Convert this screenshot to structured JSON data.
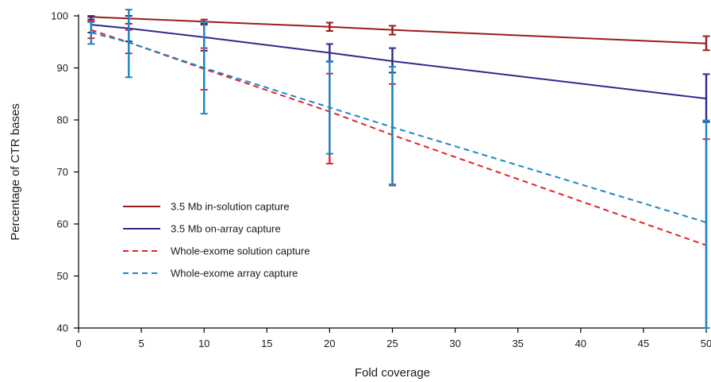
{
  "chart_data": {
    "type": "line",
    "title": "",
    "xlabel": "Fold coverage",
    "ylabel": "Percentage of CTR bases",
    "xlim": [
      0,
      50
    ],
    "ylim": [
      40,
      100
    ],
    "x_ticks": [
      0,
      5,
      10,
      15,
      20,
      25,
      30,
      35,
      40,
      45,
      50
    ],
    "y_ticks": [
      40,
      50,
      60,
      70,
      80,
      90,
      100
    ],
    "grid": false,
    "legend_position": "lower-left",
    "series": [
      {
        "name": "3.5 Mb in-solution capture",
        "color": "#9b1c1c",
        "dash": "solid",
        "points": [
          {
            "x": 1,
            "y": 99.8,
            "err_low": 99.3,
            "err_high": 100.0
          },
          {
            "x": 4,
            "y": 99.5,
            "err_low": 98.5,
            "err_high": 100.0
          },
          {
            "x": 10,
            "y": 98.9,
            "err_low": 98.3,
            "err_high": 99.3
          },
          {
            "x": 20,
            "y": 97.9,
            "err_low": 97.1,
            "err_high": 98.7
          },
          {
            "x": 25,
            "y": 97.3,
            "err_low": 96.4,
            "err_high": 98.1
          },
          {
            "x": 50,
            "y": 94.7,
            "err_low": 93.4,
            "err_high": 96.1
          }
        ]
      },
      {
        "name": "3.5 Mb on-array capture",
        "color": "#2e2b8c",
        "dash": "solid",
        "points": [
          {
            "x": 1,
            "y": 98.3,
            "err_low": 96.8,
            "err_high": 99.8
          },
          {
            "x": 4,
            "y": 97.6,
            "err_low": 95.1,
            "err_high": 100.0
          },
          {
            "x": 10,
            "y": 95.9,
            "err_low": 93.3,
            "err_high": 98.5
          },
          {
            "x": 20,
            "y": 92.9,
            "err_low": 91.2,
            "err_high": 94.6
          },
          {
            "x": 25,
            "y": 91.3,
            "err_low": 89.1,
            "err_high": 93.8
          },
          {
            "x": 50,
            "y": 84.1,
            "err_low": 79.6,
            "err_high": 88.8
          }
        ]
      },
      {
        "name": "Whole-exome solution capture",
        "color": "#e0242b",
        "dash": "dashed",
        "points": [
          {
            "x": 1,
            "y": 97.3,
            "err_low": 95.7,
            "err_high": 99.0
          },
          {
            "x": 4,
            "y": 94.9,
            "err_low": 92.8,
            "err_high": 97.3
          },
          {
            "x": 10,
            "y": 89.8,
            "err_low": 85.8,
            "err_high": 93.8
          },
          {
            "x": 20,
            "y": 81.6,
            "err_low": 71.6,
            "err_high": 88.9
          },
          {
            "x": 25,
            "y": 77.1,
            "err_low": 67.4,
            "err_high": 86.9
          },
          {
            "x": 50,
            "y": 55.9,
            "err_low": 40.0,
            "err_high": 76.3
          }
        ]
      },
      {
        "name": "Whole-exome array capture",
        "color": "#1b87c7",
        "dash": "dashed",
        "points": [
          {
            "x": 1,
            "y": 96.8,
            "err_low": 94.6,
            "err_high": 98.8
          },
          {
            "x": 4,
            "y": 94.9,
            "err_low": 88.2,
            "err_high": 101.2
          },
          {
            "x": 10,
            "y": 90.0,
            "err_low": 81.2,
            "err_high": 98.8
          },
          {
            "x": 20,
            "y": 82.4,
            "err_low": 73.5,
            "err_high": 91.3
          },
          {
            "x": 25,
            "y": 78.6,
            "err_low": 67.6,
            "err_high": 90.2
          },
          {
            "x": 50,
            "y": 60.3,
            "err_low": 40.0,
            "err_high": 79.9
          }
        ]
      }
    ]
  }
}
